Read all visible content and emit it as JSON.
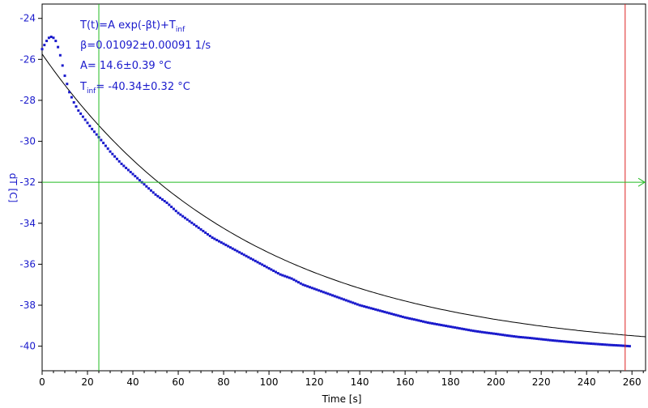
{
  "chart_data": {
    "type": "scatter",
    "xlabel": "Time [s]",
    "ylabel": "dT [C]",
    "xlim": [
      0,
      266
    ],
    "ylim": [
      -41.2,
      -23.3
    ],
    "x_ticks": [
      "0",
      "20",
      "40",
      "60",
      "80",
      "100",
      "120",
      "140",
      "160",
      "180",
      "200",
      "220",
      "240",
      "260"
    ],
    "y_ticks": [
      "-24",
      "-26",
      "-28",
      "-30",
      "-32",
      "-34",
      "-36",
      "-38",
      "-40"
    ],
    "annotations": {
      "equation": "T(t)=A exp(-βt)+T",
      "equation_sub": "inf",
      "beta": "β=0.01092±0.00091 1/s",
      "amplitude": "A= 14.6±0.39 °C",
      "tinf_prefix": "T",
      "tinf_sub": "inf",
      "tinf_value": "= -40.34±0.32 °C"
    },
    "fit": {
      "A": 14.6,
      "beta": 0.01092,
      "Tinf": -40.34
    },
    "cursors": {
      "green_vertical_x": 25,
      "red_vertical_x": 257,
      "green_horizontal_y": -32
    },
    "series": [
      {
        "style": "points",
        "x": [
          0,
          1,
          2,
          3,
          4,
          5,
          6,
          7,
          8,
          9,
          10,
          11,
          12,
          14,
          16,
          18,
          20,
          22,
          25,
          30,
          35,
          40,
          45,
          50,
          55,
          60,
          65,
          70,
          75,
          80,
          85,
          90,
          95,
          100,
          105,
          110,
          115,
          120,
          125,
          130,
          135,
          140,
          145,
          150,
          155,
          160,
          165,
          170,
          175,
          180,
          185,
          190,
          195,
          200,
          205,
          210,
          215,
          220,
          225,
          230,
          235,
          240,
          245,
          250,
          255,
          259
        ],
        "y": [
          -25.5,
          -25.3,
          -25.1,
          -24.95,
          -24.9,
          -24.95,
          -25.1,
          -25.4,
          -25.8,
          -26.3,
          -26.8,
          -27.2,
          -27.6,
          -28.1,
          -28.5,
          -28.8,
          -29.1,
          -29.4,
          -29.8,
          -30.5,
          -31.1,
          -31.6,
          -32.1,
          -32.6,
          -33.0,
          -33.5,
          -33.9,
          -34.3,
          -34.7,
          -35.0,
          -35.3,
          -35.6,
          -35.9,
          -36.2,
          -36.5,
          -36.7,
          -37.0,
          -37.2,
          -37.4,
          -37.6,
          -37.8,
          -38.0,
          -38.15,
          -38.3,
          -38.45,
          -38.6,
          -38.72,
          -38.85,
          -38.95,
          -39.05,
          -39.15,
          -39.25,
          -39.33,
          -39.4,
          -39.48,
          -39.55,
          -39.6,
          -39.66,
          -39.72,
          -39.77,
          -39.82,
          -39.86,
          -39.9,
          -39.94,
          -39.97,
          -40.0
        ]
      },
      {
        "style": "line",
        "fit_from": 0,
        "fit_to": 266
      }
    ]
  }
}
